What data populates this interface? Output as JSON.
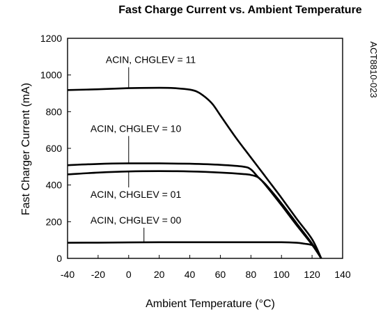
{
  "chart_data": {
    "type": "line",
    "title": "Fast Charge Current vs. Ambient Temperature",
    "xlabel": "Ambient Temperature (°C)",
    "ylabel": "Fast Charger Current (mA)",
    "side_label": "ACT8810-023",
    "xlim": [
      -40,
      140
    ],
    "ylim": [
      0,
      1200
    ],
    "xticks": [
      -40,
      -20,
      0,
      20,
      40,
      60,
      80,
      100,
      120,
      140
    ],
    "yticks": [
      0,
      200,
      400,
      600,
      800,
      1000,
      1200
    ],
    "grid": false,
    "legend": "none",
    "series": [
      {
        "name": "ACIN, CHGLEV = 11",
        "x": [
          -40,
          -20,
          0,
          20,
          30,
          40,
          45,
          50,
          55,
          60,
          70,
          80,
          90,
          100,
          110,
          120,
          126
        ],
        "y": [
          918,
          922,
          928,
          930,
          928,
          920,
          908,
          880,
          840,
          780,
          660,
          550,
          440,
          330,
          215,
          105,
          0
        ]
      },
      {
        "name": "ACIN, CHGLEV = 10",
        "x": [
          -40,
          -20,
          0,
          20,
          40,
          60,
          75,
          80,
          85,
          90,
          100,
          110,
          120,
          126
        ],
        "y": [
          508,
          515,
          518,
          518,
          516,
          510,
          500,
          485,
          440,
          400,
          300,
          190,
          80,
          0
        ]
      },
      {
        "name": "ACIN, CHGLEV = 01",
        "x": [
          -40,
          -20,
          0,
          20,
          40,
          60,
          75,
          80,
          85,
          90,
          100,
          110,
          120,
          126
        ],
        "y": [
          458,
          468,
          474,
          476,
          474,
          468,
          460,
          455,
          440,
          395,
          290,
          180,
          75,
          0
        ]
      },
      {
        "name": "ACIN, CHGLEV = 00",
        "x": [
          -40,
          -20,
          0,
          20,
          40,
          60,
          80,
          100,
          110,
          115,
          120,
          123,
          126
        ],
        "y": [
          85,
          86,
          87,
          88,
          88,
          88,
          88,
          88,
          85,
          80,
          72,
          50,
          0
        ]
      }
    ],
    "annotations": [
      {
        "text": "ACIN, CHGLEV = 11",
        "x": -15,
        "y": 1065,
        "arrow_x": 0,
        "arrow_y": 930
      },
      {
        "text": "ACIN, CHGLEV = 10",
        "x": -25,
        "y": 690,
        "arrow_x": 0,
        "arrow_y": 518
      },
      {
        "text": "ACIN, CHGLEV = 01",
        "x": -25,
        "y": 330,
        "arrow_x": 0,
        "arrow_y": 474
      },
      {
        "text": "ACIN, CHGLEV = 00",
        "x": -25,
        "y": 190,
        "arrow_x": 10,
        "arrow_y": 87
      }
    ]
  }
}
